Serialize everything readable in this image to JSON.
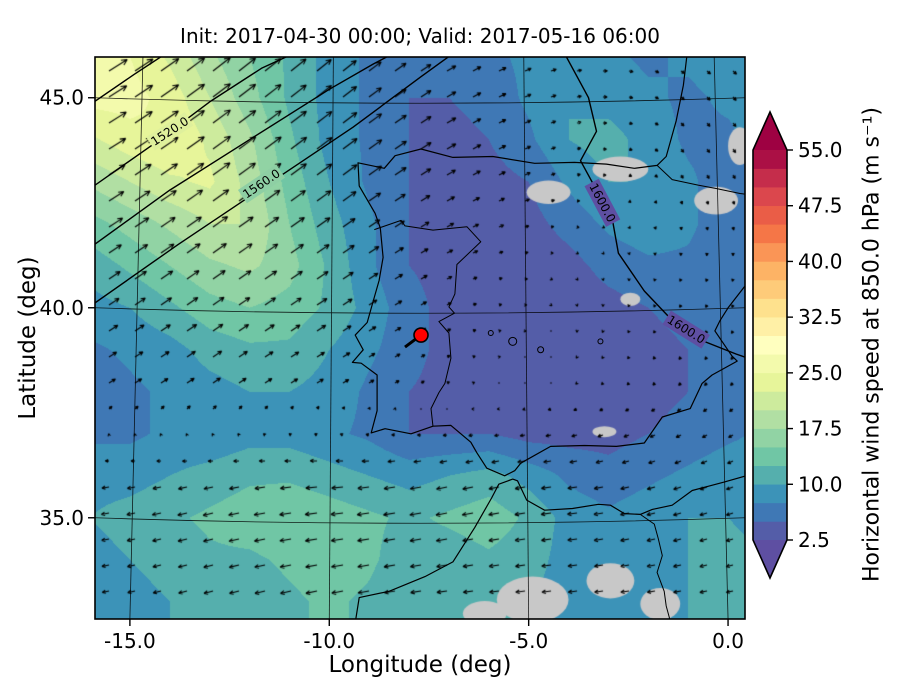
{
  "figure": {
    "title": "Init: 2017-04-30 00:00; Valid: 2017-05-16 06:00",
    "xlabel": "Longitude (deg)",
    "ylabel": "Latitude (deg)"
  },
  "axes": {
    "x_ticks": [
      {
        "label": "-15.0",
        "value": -15
      },
      {
        "label": "-10.0",
        "value": -10
      },
      {
        "label": "-5.0",
        "value": -5
      },
      {
        "label": "0.0",
        "value": 0
      }
    ],
    "y_ticks": [
      {
        "label": "35.0",
        "value": 35
      },
      {
        "label": "40.0",
        "value": 40
      },
      {
        "label": "45.0",
        "value": 45
      }
    ]
  },
  "colorbar": {
    "label": "Horizontal wind speed at 850.0 hPa (m s⁻¹)",
    "ticks": [
      {
        "label": "2.5",
        "value": 2.5
      },
      {
        "label": "10.0",
        "value": 10
      },
      {
        "label": "17.5",
        "value": 17.5
      },
      {
        "label": "25.0",
        "value": 25
      },
      {
        "label": "32.5",
        "value": 32.5
      },
      {
        "label": "40.0",
        "value": 40
      },
      {
        "label": "47.5",
        "value": 47.5
      },
      {
        "label": "55.0",
        "value": 55
      }
    ],
    "min": 2.5,
    "max": 55.0,
    "extend": "both"
  },
  "chart_data": {
    "type": "heatmap",
    "subtype": "filled-contour wind-speed map with quiver arrows and geopotential contours",
    "title": "Init: 2017-04-30 00:00; Valid: 2017-05-16 06:00",
    "xlabel": "Longitude (deg)",
    "ylabel": "Latitude (deg)",
    "colorbar_label": "Horizontal wind speed at 850.0 hPa (m s⁻¹)",
    "xlim": [
      -15.9,
      0.45
    ],
    "ylim": [
      32.6,
      46.0
    ],
    "levels": {
      "start": 2.5,
      "step": 2.5,
      "end": 55.0
    },
    "colormap_anchors": [
      "#5e4fa2",
      "#3288bd",
      "#66c2a5",
      "#abdda4",
      "#e6f598",
      "#ffffbf",
      "#fee08b",
      "#fdae61",
      "#f46d43",
      "#d53e4f",
      "#9e0142"
    ],
    "wind_speed_grid": {
      "units": "m s-1",
      "lon_start": -16,
      "lon_step": 1,
      "lat_start": 46,
      "lat_step": -1,
      "values": [
        [
          27,
          25,
          22,
          18,
          15,
          12,
          9,
          7,
          6,
          6,
          7,
          8,
          9,
          8,
          7,
          8,
          9,
          8
        ],
        [
          26,
          26,
          24,
          20,
          16,
          12,
          9,
          7,
          5,
          5,
          6,
          8,
          10,
          9,
          8,
          7,
          8,
          8
        ],
        [
          22,
          24,
          25,
          22,
          18,
          13,
          9,
          7,
          5,
          4,
          5,
          7,
          10,
          11,
          9,
          7,
          7,
          9
        ],
        [
          18,
          20,
          22,
          23,
          19,
          14,
          10,
          7,
          5,
          4,
          4,
          5,
          8,
          10,
          10,
          8,
          6,
          6
        ],
        [
          14,
          16,
          18,
          20,
          20,
          15,
          11,
          8,
          5,
          4,
          3,
          4,
          6,
          8,
          9,
          8,
          6,
          5
        ],
        [
          11,
          13,
          15,
          17,
          18,
          16,
          12,
          8,
          5,
          4,
          3,
          3,
          4,
          6,
          7,
          7,
          6,
          5
        ],
        [
          9,
          10,
          12,
          14,
          15,
          14,
          12,
          9,
          6,
          4,
          3,
          3,
          3,
          4,
          5,
          6,
          6,
          5
        ],
        [
          7,
          8,
          9,
          11,
          12,
          12,
          10,
          8,
          6,
          4,
          3,
          3,
          3,
          3,
          4,
          5,
          6,
          6
        ],
        [
          6,
          7,
          8,
          9,
          10,
          10,
          9,
          7,
          5,
          4,
          4,
          3,
          3,
          3,
          4,
          5,
          6,
          7
        ],
        [
          7,
          7,
          8,
          8,
          9,
          9,
          8,
          7,
          5,
          5,
          5,
          4,
          4,
          4,
          5,
          6,
          7,
          8
        ],
        [
          9,
          9,
          10,
          11,
          12,
          12,
          11,
          10,
          9,
          10,
          11,
          9,
          7,
          6,
          7,
          8,
          9,
          9
        ],
        [
          10,
          11,
          12,
          13,
          14,
          15,
          14,
          13,
          12,
          13,
          14,
          12,
          9,
          8,
          9,
          10,
          10,
          9
        ],
        [
          9,
          10,
          11,
          12,
          12,
          13,
          14,
          13,
          11,
          11,
          12,
          11,
          9,
          8,
          9,
          10,
          11,
          10
        ],
        [
          8,
          9,
          10,
          11,
          11,
          12,
          13,
          12,
          10,
          10,
          11,
          10,
          9,
          8,
          9,
          10,
          11,
          10
        ]
      ]
    },
    "wind_vector_grid": {
      "units": "m s-1",
      "lons": [
        -16,
        -13,
        -10,
        -7,
        -4,
        -1,
        1
      ],
      "lats": [
        46,
        43.4,
        40.8,
        38.2,
        35.6,
        33
      ],
      "u": [
        [
          15,
          14,
          11,
          7,
          4,
          3,
          3
        ],
        [
          13,
          14,
          12,
          7,
          3,
          2,
          2
        ],
        [
          9,
          10,
          9,
          4,
          1,
          -1,
          0
        ],
        [
          5,
          6,
          5,
          2,
          -1,
          -2,
          -2
        ],
        [
          -6,
          -8,
          -10,
          -9,
          -8,
          -6,
          -5
        ],
        [
          -5,
          -7,
          -9,
          -8,
          -7,
          -6,
          -5
        ]
      ],
      "v": [
        [
          9,
          11,
          9,
          4,
          1,
          -2,
          -3
        ],
        [
          8,
          10,
          9,
          4,
          1,
          -3,
          -3
        ],
        [
          6,
          7,
          6,
          2,
          -1,
          -2,
          -2
        ],
        [
          3,
          4,
          3,
          1,
          -1,
          -2,
          -2
        ],
        [
          -1,
          -2,
          -1,
          -2,
          -1,
          -2,
          -2
        ],
        [
          -1,
          -2,
          -2,
          -1,
          -1,
          -1,
          -1
        ]
      ]
    },
    "geopotential_contour_labels": [
      {
        "text": "1520.0",
        "lon": -14.0,
        "lat": 44.2,
        "rot": -33,
        "bg": "#dff09c"
      },
      {
        "text": "1560.0",
        "lon": -11.7,
        "lat": 42.95,
        "rot": -34,
        "bg": "#8ecfa4"
      },
      {
        "text": "1600.0",
        "lon": -3.15,
        "lat": 42.5,
        "rot": 62,
        "bg": "#5e4fa2"
      },
      {
        "text": "1600.0",
        "lon": -1.05,
        "lat": 39.48,
        "rot": 32,
        "bg": "#5e4fa2"
      }
    ],
    "marker": {
      "lon": -7.7,
      "lat": 39.35,
      "color": "#ff0000"
    },
    "masked_terrain_color": "#c8c8c8",
    "masked_terrain_regions": [
      {
        "lon": -4.5,
        "lat": 42.75,
        "rx": 0.55,
        "ry": 0.28
      },
      {
        "lon": -2.7,
        "lat": 43.3,
        "rx": 0.7,
        "ry": 0.3
      },
      {
        "lon": -0.3,
        "lat": 42.55,
        "rx": 0.55,
        "ry": 0.33
      },
      {
        "lon": 0.3,
        "lat": 43.85,
        "rx": 0.3,
        "ry": 0.45
      },
      {
        "lon": -2.45,
        "lat": 40.2,
        "rx": 0.25,
        "ry": 0.16
      },
      {
        "lon": -3.1,
        "lat": 37.05,
        "rx": 0.3,
        "ry": 0.13
      },
      {
        "lon": -4.9,
        "lat": 33.05,
        "rx": 0.9,
        "ry": 0.55
      },
      {
        "lon": -2.95,
        "lat": 33.5,
        "rx": 0.6,
        "ry": 0.42
      },
      {
        "lon": -1.7,
        "lat": 32.95,
        "rx": 0.5,
        "ry": 0.38
      },
      {
        "lon": -6.1,
        "lat": 32.72,
        "rx": 0.55,
        "ry": 0.3
      }
    ]
  }
}
